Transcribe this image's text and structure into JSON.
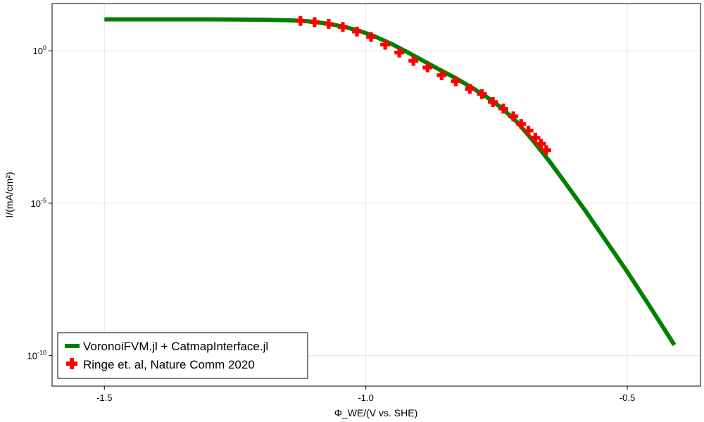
{
  "chart_data": {
    "type": "line",
    "title": "",
    "xlabel": "Φ_WE/(V vs. SHE)",
    "ylabel": "I/(mA/cm²)",
    "xlim": [
      -1.6,
      -0.36
    ],
    "ylim_exponent": [
      -11,
      1.55
    ],
    "yscale": "log10",
    "grid": true,
    "legend_position": "bottom-left",
    "x_ticks": [
      {
        "value": -1.5,
        "label": "-1.5"
      },
      {
        "value": -1.0,
        "label": "-1.0"
      },
      {
        "value": -0.5,
        "label": "-0.5"
      }
    ],
    "y_ticks": [
      {
        "exponent": 0,
        "base": "10",
        "exp_label": "0"
      },
      {
        "exponent": -5,
        "base": "10",
        "exp_label": "-5"
      },
      {
        "exponent": -10,
        "base": "10",
        "exp_label": "-10"
      }
    ],
    "series": [
      {
        "name": "VoronoiFVM.jl + CatmapInterface.jl",
        "kind": "line",
        "color": "#008000",
        "points": [
          [
            -1.5,
            1.03
          ],
          [
            -1.4,
            1.03
          ],
          [
            -1.3,
            1.03
          ],
          [
            -1.2,
            1.02
          ],
          [
            -1.15,
            1.0
          ],
          [
            -1.12,
            0.98
          ],
          [
            -1.1,
            0.95
          ],
          [
            -1.07,
            0.88
          ],
          [
            -1.04,
            0.78
          ],
          [
            -1.01,
            0.64
          ],
          [
            -0.98,
            0.45
          ],
          [
            -0.95,
            0.22
          ],
          [
            -0.92,
            -0.05
          ],
          [
            -0.89,
            -0.33
          ],
          [
            -0.86,
            -0.61
          ],
          [
            -0.83,
            -0.88
          ],
          [
            -0.8,
            -1.18
          ],
          [
            -0.77,
            -1.5
          ],
          [
            -0.74,
            -1.88
          ],
          [
            -0.71,
            -2.35
          ],
          [
            -0.68,
            -2.95
          ],
          [
            -0.65,
            -3.6
          ],
          [
            -0.62,
            -4.3
          ],
          [
            -0.58,
            -5.25
          ],
          [
            -0.54,
            -6.25
          ],
          [
            -0.5,
            -7.25
          ],
          [
            -0.46,
            -8.3
          ],
          [
            -0.41,
            -9.65
          ]
        ]
      },
      {
        "name": "Ringe et. al, Nature Comm 2020",
        "kind": "scatter",
        "color": "#ff0000",
        "points": [
          [
            -1.125,
            0.98
          ],
          [
            -1.098,
            0.94
          ],
          [
            -1.071,
            0.88
          ],
          [
            -1.044,
            0.78
          ],
          [
            -1.017,
            0.63
          ],
          [
            -0.99,
            0.45
          ],
          [
            -0.963,
            0.2
          ],
          [
            -0.936,
            -0.06
          ],
          [
            -0.909,
            -0.33
          ],
          [
            -0.882,
            -0.55
          ],
          [
            -0.855,
            -0.8
          ],
          [
            -0.828,
            -1.0
          ],
          [
            -0.801,
            -1.25
          ],
          [
            -0.778,
            -1.42
          ],
          [
            -0.757,
            -1.68
          ],
          [
            -0.737,
            -1.9
          ],
          [
            -0.718,
            -2.15
          ],
          [
            -0.703,
            -2.4
          ],
          [
            -0.689,
            -2.62
          ],
          [
            -0.676,
            -2.85
          ],
          [
            -0.665,
            -3.05
          ],
          [
            -0.655,
            -3.26
          ]
        ]
      }
    ]
  }
}
